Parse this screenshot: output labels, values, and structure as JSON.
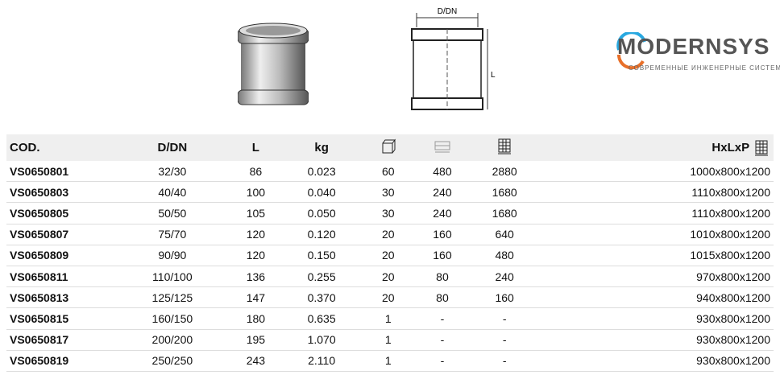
{
  "diagram": {
    "dim_label": "D/DN",
    "length_label": "L"
  },
  "table": {
    "headers": [
      "COD.",
      "D/DN",
      "L",
      "kg",
      "box-icon",
      "pallet-layer-icon",
      "pallet-icon",
      "HxLxP"
    ],
    "rows": [
      [
        "VS0650801",
        "32/30",
        "86",
        "0.023",
        "60",
        "480",
        "2880",
        "1000x800x1200"
      ],
      [
        "VS0650803",
        "40/40",
        "100",
        "0.040",
        "30",
        "240",
        "1680",
        "1110x800x1200"
      ],
      [
        "VS0650805",
        "50/50",
        "105",
        "0.050",
        "30",
        "240",
        "1680",
        "1110x800x1200"
      ],
      [
        "VS0650807",
        "75/70",
        "120",
        "0.120",
        "20",
        "160",
        "640",
        "1010x800x1200"
      ],
      [
        "VS0650809",
        "90/90",
        "120",
        "0.150",
        "20",
        "160",
        "480",
        "1015x800x1200"
      ],
      [
        "VS0650811",
        "110/100",
        "136",
        "0.255",
        "20",
        "80",
        "240",
        "970x800x1200"
      ],
      [
        "VS0650813",
        "125/125",
        "147",
        "0.370",
        "20",
        "80",
        "160",
        "940x800x1200"
      ],
      [
        "VS0650815",
        "160/150",
        "180",
        "0.635",
        "1",
        "-",
        "-",
        "930x800x1200"
      ],
      [
        "VS0650817",
        "200/200",
        "195",
        "1.070",
        "1",
        "-",
        "-",
        "930x800x1200"
      ],
      [
        "VS0650819",
        "250/250",
        "243",
        "2.110",
        "1",
        "-",
        "-",
        "930x800x1200"
      ]
    ]
  },
  "watermark": {
    "brand": "MODERNSYS",
    "tagline": "СОВРЕМЕННЫЕ ИНЖЕНЕРНЫЕ СИСТЕМЫ"
  }
}
